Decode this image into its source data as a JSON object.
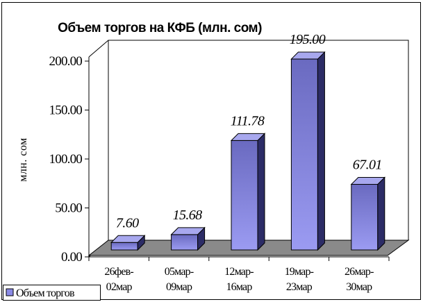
{
  "colors": {
    "bar_front": "#6a6ac0",
    "bar_front_light": "#9b9bf2",
    "bar_side": "#2c2c66",
    "bar_top": "#a8a8ee",
    "floor": "#8a8a8a",
    "border": "#000000",
    "legend_swatch": "#8a8ae6"
  },
  "chart_data": {
    "type": "bar",
    "title": "Объем торгов на КФБ (млн. сом)",
    "xlabel": "",
    "ylabel": "млн. сом",
    "ylim": [
      0,
      200
    ],
    "yticks": [
      "0.00",
      "50.00",
      "100.00",
      "150.00",
      "200.00"
    ],
    "categories": [
      [
        "26фев-",
        "02мар"
      ],
      [
        "05мар-",
        "09мар"
      ],
      [
        "12мар-",
        "16мар"
      ],
      [
        "19мар-",
        "23мар"
      ],
      [
        "26мар-",
        "30мар"
      ]
    ],
    "series": [
      {
        "name": "Объем торгов",
        "values": [
          7.6,
          15.68,
          111.78,
          195.0,
          67.01
        ],
        "labels": [
          "7.60",
          "15.68",
          "111.78",
          "195.00",
          "67.01"
        ]
      }
    ],
    "grid": false,
    "legend_position": "bottom-left",
    "three_d": true
  }
}
